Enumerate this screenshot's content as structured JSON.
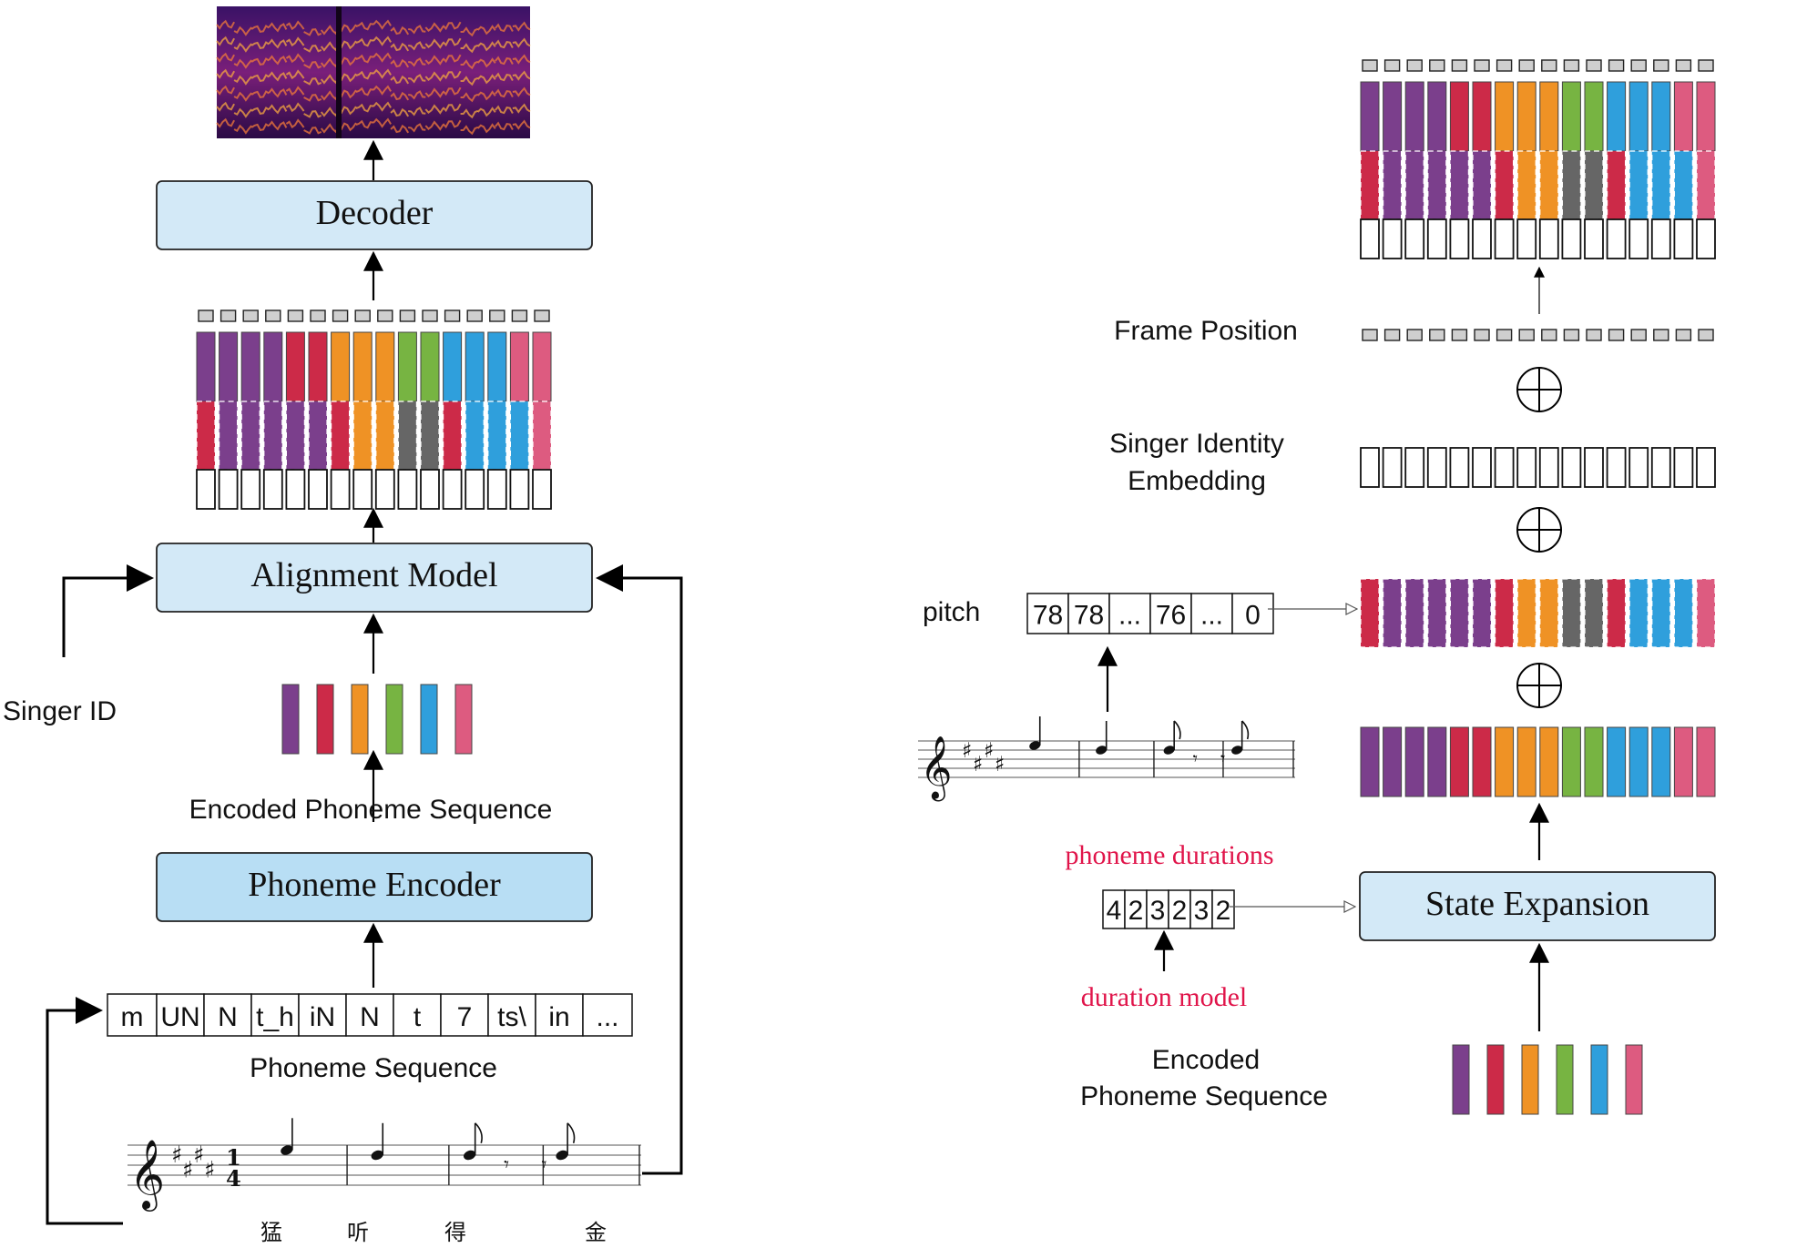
{
  "left": {
    "decoder_label": "Decoder",
    "alignment_label": "Alignment Model",
    "encoder_label": "Phoneme Encoder",
    "singer_id_label": "Singer ID",
    "encoded_seq_label": "Encoded Phoneme Sequence",
    "phoneme_seq_label": "Phoneme Sequence",
    "phonemes": [
      "m",
      "UN",
      "N",
      "t_h",
      "iN",
      "N",
      "t",
      "7",
      "ts\\",
      "in",
      "..."
    ],
    "lyrics": [
      "猛",
      "听",
      "得",
      "金"
    ]
  },
  "right": {
    "frame_position_label": "Frame Position",
    "singer_embedding_label_1": "Singer Identity",
    "singer_embedding_label_2": "Embedding",
    "pitch_label": "pitch",
    "pitch_values": [
      "78",
      "78",
      "...",
      "76",
      "...",
      "0"
    ],
    "phoneme_durations_label": "phoneme durations",
    "durations": [
      "4",
      "2",
      "3",
      "2",
      "3",
      "2"
    ],
    "duration_model_label": "duration model",
    "state_expansion_label": "State Expansion",
    "encoded_label_1": "Encoded",
    "encoded_label_2": "Phoneme Sequence"
  },
  "colors": {
    "purple": "#7b3f8c",
    "red": "#cc2a48",
    "orange": "#ef9225",
    "green": "#77b442",
    "blue": "#2f9fdc",
    "pink": "#dd5b80",
    "gray": "#666666",
    "box_fill": "#d3e9f7",
    "box_fill_encoder": "#b8def4",
    "annotation_red": "#e0144a"
  }
}
